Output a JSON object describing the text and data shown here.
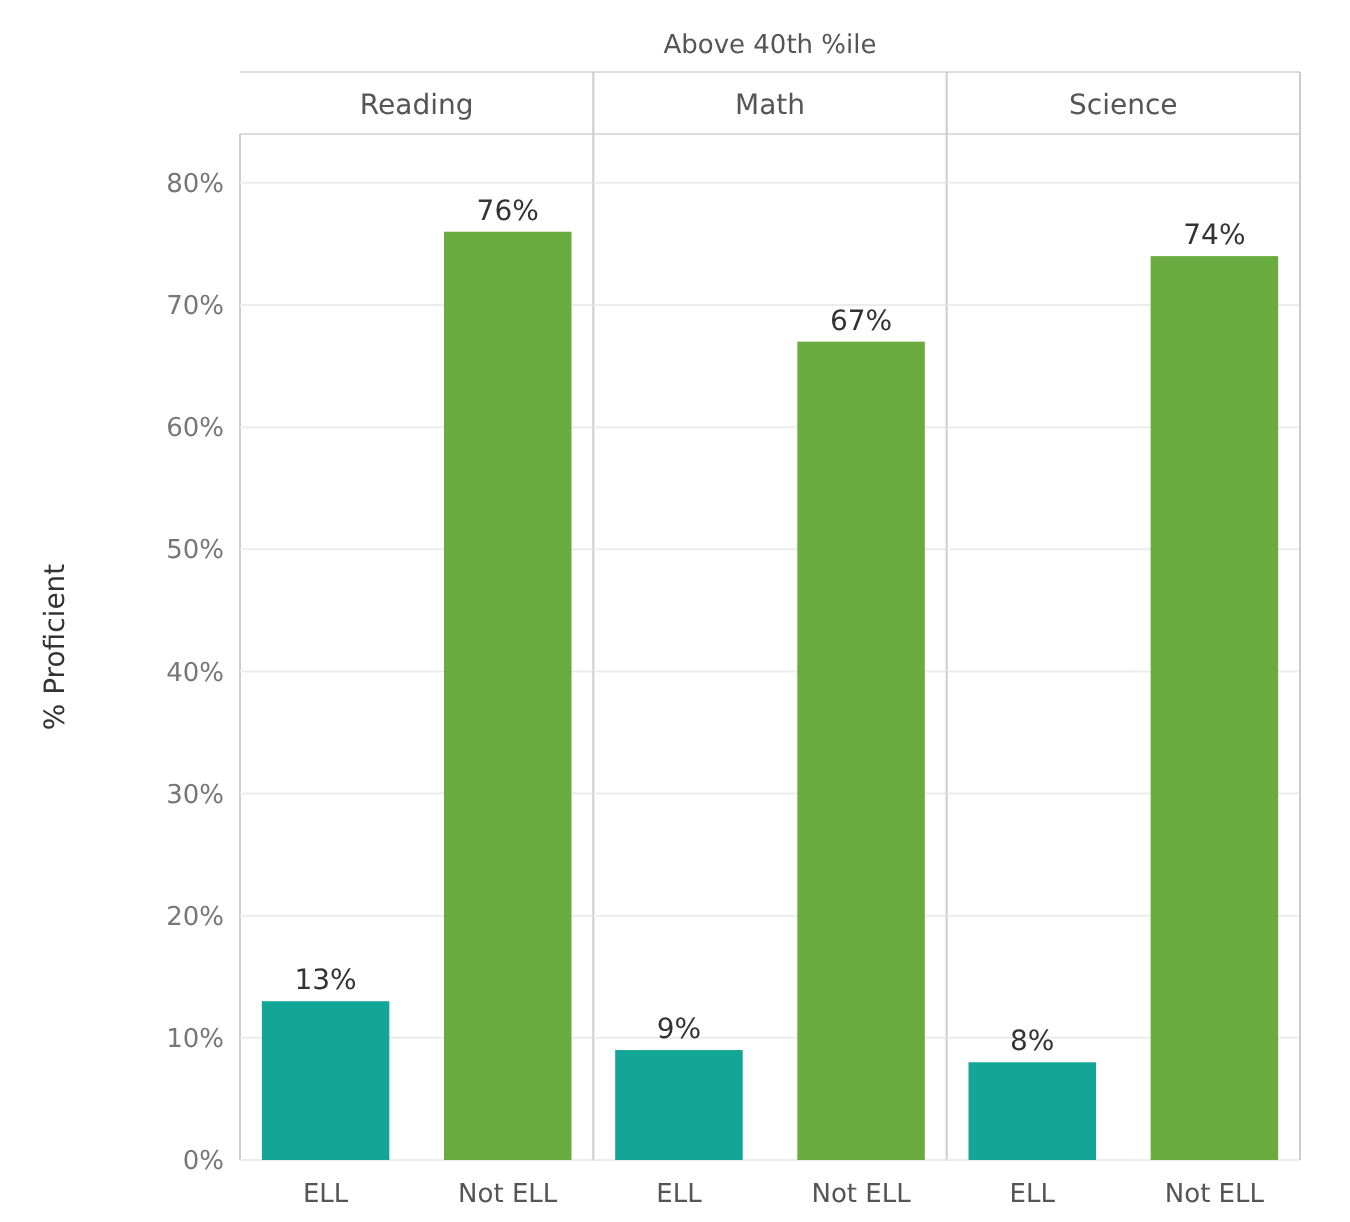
{
  "chart_data": [
    {
      "type": "bar",
      "title": "Reading",
      "annotations": [
        "Above 40th %ile"
      ],
      "ylabel": "% Proficient",
      "categories": [
        "ELL",
        "Not ELL"
      ],
      "values": [
        13,
        76
      ],
      "value_labels": [
        "13%",
        "76%"
      ],
      "colors": [
        "#13a596",
        "#6aab3f"
      ],
      "ylim": [
        0,
        84
      ],
      "yticks": [
        {
          "value": 0,
          "label": "0%"
        },
        {
          "value": 10,
          "label": "10%"
        },
        {
          "value": 20,
          "label": "20%"
        },
        {
          "value": 30,
          "label": "30%"
        },
        {
          "value": 40,
          "label": "40%"
        },
        {
          "value": 50,
          "label": "50%"
        },
        {
          "value": 60,
          "label": "60%"
        },
        {
          "value": 70,
          "label": "70%"
        },
        {
          "value": 80,
          "label": "80%"
        }
      ],
      "grid": "y"
    },
    {
      "type": "bar",
      "title": "Math",
      "categories": [
        "ELL",
        "Not ELL"
      ],
      "values": [
        9,
        67
      ],
      "value_labels": [
        "9%",
        "67%"
      ],
      "colors": [
        "#13a596",
        "#6aab3f"
      ],
      "ylim": [
        0,
        84
      ],
      "yticks": [
        {
          "value": 0,
          "label": null
        },
        {
          "value": 10,
          "label": null
        },
        {
          "value": 20,
          "label": null
        },
        {
          "value": 30,
          "label": null
        },
        {
          "value": 40,
          "label": null
        },
        {
          "value": 50,
          "label": null
        },
        {
          "value": 60,
          "label": null
        },
        {
          "value": 70,
          "label": null
        },
        {
          "value": 80,
          "label": null
        }
      ],
      "grid": "y",
      "tick_labels": "x"
    },
    {
      "type": "bar",
      "title": "Science",
      "categories": [
        "ELL",
        "Not ELL"
      ],
      "values": [
        8,
        74
      ],
      "value_labels": [
        "8%",
        "74%"
      ],
      "colors": [
        "#13a596",
        "#6aab3f"
      ],
      "ylim": [
        0,
        84
      ],
      "yticks": [
        {
          "value": 0,
          "label": null
        },
        {
          "value": 10,
          "label": null
        },
        {
          "value": 20,
          "label": null
        },
        {
          "value": 30,
          "label": null
        },
        {
          "value": 40,
          "label": null
        },
        {
          "value": 50,
          "label": null
        },
        {
          "value": 60,
          "label": null
        },
        {
          "value": 70,
          "label": null
        },
        {
          "value": 80,
          "label": null
        }
      ],
      "grid": "y",
      "tick_labels": "x"
    }
  ]
}
